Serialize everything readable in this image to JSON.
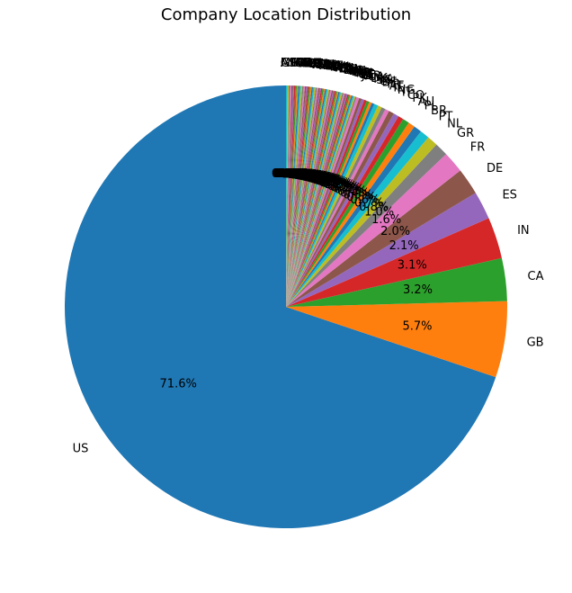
{
  "chart_data": {
    "type": "pie",
    "title": "Company Location Distribution",
    "start_angle_deg": 90,
    "direction": "counterclockwise",
    "palette": [
      "#1f77b4",
      "#ff7f0e",
      "#2ca02c",
      "#d62728",
      "#9467bd",
      "#8c564b",
      "#e377c2",
      "#7f7f7f",
      "#bcbd22",
      "#17becf"
    ],
    "slices": [
      {
        "label": "US",
        "value": 71.6,
        "pct_label": "71.6%"
      },
      {
        "label": "GB",
        "value": 5.7,
        "pct_label": "5.7%"
      },
      {
        "label": "CA",
        "value": 3.2,
        "pct_label": "3.2%"
      },
      {
        "label": "IN",
        "value": 3.1,
        "pct_label": "3.1%"
      },
      {
        "label": "ES",
        "value": 2.1,
        "pct_label": "2.1%"
      },
      {
        "label": "DE",
        "value": 2.0,
        "pct_label": "2.0%"
      },
      {
        "label": "FR",
        "value": 1.6,
        "pct_label": "1.6%"
      },
      {
        "label": "GR",
        "value": 1.0,
        "pct_label": "1.0%"
      },
      {
        "label": "NL",
        "value": 0.8,
        "pct_label": "0.8%"
      },
      {
        "label": "PT",
        "value": 0.7,
        "pct_label": "0.7%"
      },
      {
        "label": "BR",
        "value": 0.6,
        "pct_label": "0.6%"
      },
      {
        "label": "PL",
        "value": 0.5,
        "pct_label": "0.5%"
      },
      {
        "label": "AU",
        "value": 0.5,
        "pct_label": "0.5%"
      },
      {
        "label": "PK",
        "value": 0.4,
        "pct_label": "0.4%"
      },
      {
        "label": "CO",
        "value": 0.4,
        "pct_label": "0.4%"
      },
      {
        "label": "IT",
        "value": 0.4,
        "pct_label": "0.4%"
      },
      {
        "label": "NG",
        "value": 0.3,
        "pct_label": "0.3%"
      },
      {
        "label": "IE",
        "value": 0.3,
        "pct_label": "0.3%"
      },
      {
        "label": "AT",
        "value": 0.3,
        "pct_label": "0.3%"
      },
      {
        "label": "TR",
        "value": 0.3,
        "pct_label": "0.3%"
      },
      {
        "label": "BE",
        "value": 0.2,
        "pct_label": "0.2%"
      },
      {
        "label": "CH",
        "value": 0.2,
        "pct_label": "0.2%"
      },
      {
        "label": "SG",
        "value": 0.2,
        "pct_label": "0.2%"
      },
      {
        "label": "MX",
        "value": 0.2,
        "pct_label": "0.2%"
      },
      {
        "label": "DK",
        "value": 0.2,
        "pct_label": "0.2%"
      },
      {
        "label": "UA",
        "value": 0.2,
        "pct_label": "0.2%"
      },
      {
        "label": "AR",
        "value": 0.2,
        "pct_label": "0.2%"
      },
      {
        "label": "LT",
        "value": 0.1,
        "pct_label": "0.1%"
      },
      {
        "label": "JP",
        "value": 0.1,
        "pct_label": "0.1%"
      },
      {
        "label": "EE",
        "value": 0.1,
        "pct_label": "0.1%"
      },
      {
        "label": "SI",
        "value": 0.1,
        "pct_label": "0.1%"
      },
      {
        "label": "CZ",
        "value": 0.1,
        "pct_label": "0.1%"
      },
      {
        "label": "RU",
        "value": 0.1,
        "pct_label": "0.1%"
      },
      {
        "label": "HR",
        "value": 0.1,
        "pct_label": "0.1%"
      },
      {
        "label": "LU",
        "value": 0.1,
        "pct_label": "0.1%"
      },
      {
        "label": "FI",
        "value": 0.1,
        "pct_label": "0.1%"
      },
      {
        "label": "SE",
        "value": 0.1,
        "pct_label": "0.1%"
      },
      {
        "label": "HU",
        "value": 0.1,
        "pct_label": "0.1%"
      },
      {
        "label": "RO",
        "value": 0.1,
        "pct_label": "0.1%"
      },
      {
        "label": "IL",
        "value": 0.1,
        "pct_label": "0.1%"
      },
      {
        "label": "ZA",
        "value": 0.1,
        "pct_label": "0.1%"
      },
      {
        "label": "KE",
        "value": 0.1,
        "pct_label": "0.1%"
      },
      {
        "label": "TH",
        "value": 0.1,
        "pct_label": "0.1%"
      },
      {
        "label": "CL",
        "value": 0.1,
        "pct_label": "0.1%"
      },
      {
        "label": "EG",
        "value": 0.1,
        "pct_label": "0.1%"
      },
      {
        "label": "VN",
        "value": 0.1,
        "pct_label": "0.1%"
      },
      {
        "label": "AE",
        "value": 0.1,
        "pct_label": "0.1%"
      },
      {
        "label": "NZ",
        "value": 0.1,
        "pct_label": "0.1%"
      },
      {
        "label": "PH",
        "value": 0.1,
        "pct_label": "0.1%"
      },
      {
        "label": "MY",
        "value": 0.1,
        "pct_label": "0.1%"
      },
      {
        "label": "ID",
        "value": 0.1,
        "pct_label": "0.1%"
      },
      {
        "label": "GH",
        "value": 0.1,
        "pct_label": "0.1%"
      },
      {
        "label": "LV",
        "value": 0.1,
        "pct_label": "0.1%"
      },
      {
        "label": "MT",
        "value": 0.1,
        "pct_label": "0.1%"
      },
      {
        "label": "CY",
        "value": 0.1,
        "pct_label": "0.1%"
      },
      {
        "label": "BG",
        "value": 0.1,
        "pct_label": "0.1%"
      },
      {
        "label": "PR",
        "value": 0.1,
        "pct_label": "0.1%"
      },
      {
        "label": "HK",
        "value": 0.1,
        "pct_label": "0.1%"
      },
      {
        "label": "CN",
        "value": 0.1,
        "pct_label": "0.1%"
      },
      {
        "label": "KR",
        "value": 0.1,
        "pct_label": "0.1%"
      },
      {
        "label": "SA",
        "value": 0.1,
        "pct_label": "0.1%"
      },
      {
        "label": "QA",
        "value": 0.1,
        "pct_label": "0.1%"
      },
      {
        "label": "MA",
        "value": 0.1,
        "pct_label": "0.1%"
      },
      {
        "label": "TN",
        "value": 0.1,
        "pct_label": "0.1%"
      },
      {
        "label": "PE",
        "value": 0.1,
        "pct_label": "0.1%"
      },
      {
        "label": "UY",
        "value": 0.1,
        "pct_label": "0.1%"
      },
      {
        "label": "CR",
        "value": 0.1,
        "pct_label": "0.1%"
      },
      {
        "label": "DZ",
        "value": 0.1,
        "pct_label": "0.1%"
      },
      {
        "label": "IQ",
        "value": 0.1,
        "pct_label": "0.1%"
      },
      {
        "label": "IR",
        "value": 0.1,
        "pct_label": "0.1%"
      },
      {
        "label": "AL",
        "value": 0.1,
        "pct_label": "0.1%"
      },
      {
        "label": "AM",
        "value": 0.1,
        "pct_label": "0.1%"
      },
      {
        "label": "BA",
        "value": 0.1,
        "pct_label": "0.1%"
      },
      {
        "label": "BO",
        "value": 0.1,
        "pct_label": "0.1%"
      },
      {
        "label": "HN",
        "value": 0.1,
        "pct_label": "0.1%"
      },
      {
        "label": "MD",
        "value": 0.1,
        "pct_label": "0.1%"
      },
      {
        "label": "MK",
        "value": 0.1,
        "pct_label": "0.1%"
      },
      {
        "label": "MU",
        "value": 0.1,
        "pct_label": "0.1%"
      },
      {
        "label": "AS",
        "value": 0.1,
        "pct_label": "0.1%"
      },
      {
        "label": "GI",
        "value": 0.1,
        "pct_label": "0.1%"
      }
    ]
  }
}
